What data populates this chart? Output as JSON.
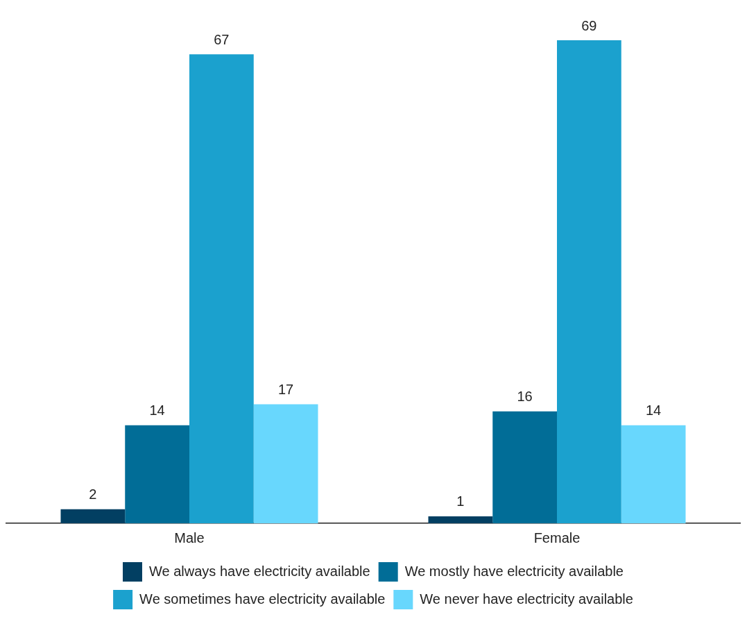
{
  "chart_data": {
    "type": "bar",
    "categories": [
      "Male",
      "Female"
    ],
    "series": [
      {
        "name": "We always have electricity available",
        "color": "#023f62",
        "values": [
          2,
          1
        ]
      },
      {
        "name": "We mostly have electricity available",
        "color": "#016d97",
        "values": [
          14,
          16
        ]
      },
      {
        "name": "We sometimes have electricity available",
        "color": "#1ba1ce",
        "values": [
          67,
          69
        ]
      },
      {
        "name": "We never have electricity available",
        "color": "#68d7fd",
        "values": [
          17,
          14
        ]
      }
    ],
    "data_labels": true,
    "grid": false,
    "legend": "bottom",
    "tick_labels": "x"
  }
}
